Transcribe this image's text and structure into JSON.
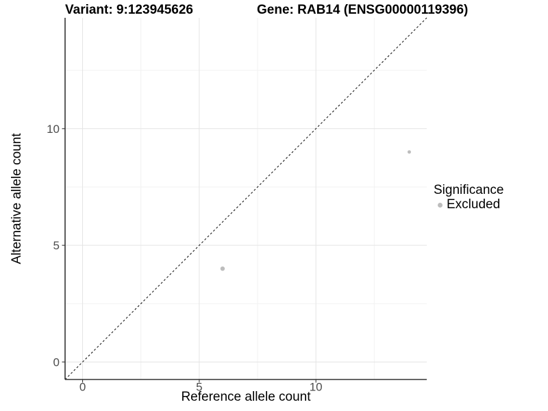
{
  "header": {
    "title_left": "Variant: 9:123945626",
    "title_right": "Gene: RAB14 (ENSG00000119396)"
  },
  "chart_data": {
    "type": "scatter",
    "title_left": "Variant: 9:123945626",
    "title_right": "Gene: RAB14 (ENSG00000119396)",
    "xlabel": "Reference allele count",
    "ylabel": "Alternative allele count",
    "xlim": [
      -0.75,
      14.75
    ],
    "ylim": [
      -0.75,
      14.75
    ],
    "x_ticks": [
      0,
      5,
      10
    ],
    "y_ticks": [
      0,
      5,
      10
    ],
    "minor_gridlines": [
      2.5,
      7.5,
      12.5
    ],
    "grid": true,
    "identity_line": {
      "style": "dashed",
      "from": [
        -0.75,
        -0.75
      ],
      "to": [
        14.75,
        14.75
      ],
      "color": "#1a1a1a"
    },
    "series": [
      {
        "name": "Excluded",
        "color": "#bdbdbd",
        "points": [
          {
            "x": 6,
            "y": 4,
            "r": 3.2
          },
          {
            "x": 14,
            "y": 9,
            "r": 2.5
          }
        ]
      }
    ],
    "legend": {
      "title": "Significance",
      "position": "right",
      "entries": [
        {
          "label": "Excluded",
          "color": "#bdbdbd"
        }
      ]
    },
    "colors": {
      "background": "#ffffff",
      "grid_major": "#e4e4e4",
      "grid_minor": "#f2f2f2",
      "axis_line": "#333333",
      "tick_text": "#4d4d4d",
      "point": "#bdbdbd"
    }
  }
}
